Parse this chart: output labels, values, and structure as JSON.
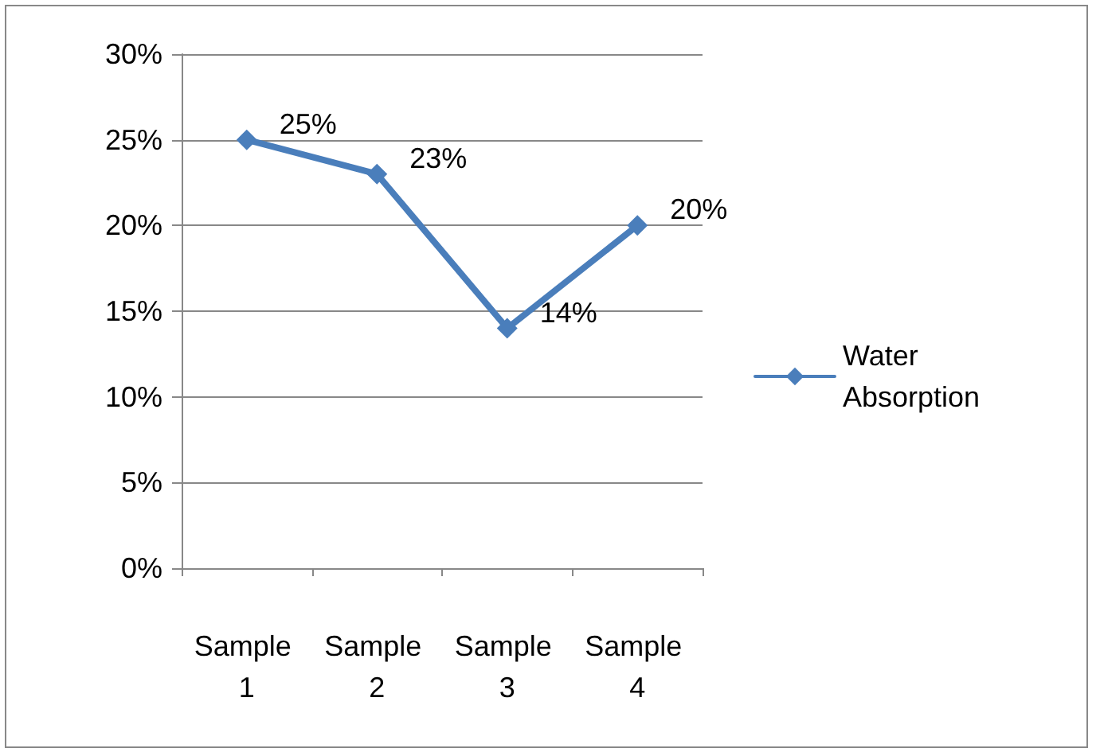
{
  "chart_data": {
    "type": "line",
    "categories": [
      "Sample 1",
      "Sample 2",
      "Sample 3",
      "Sample 4"
    ],
    "series": [
      {
        "name": "Water Absorption",
        "color": "#4a7ebb",
        "values": [
          25,
          23,
          14,
          20
        ],
        "value_labels": [
          "25%",
          "23%",
          "14%",
          "20%"
        ]
      }
    ],
    "ylim": [
      0,
      30
    ],
    "yticks": [
      {
        "value": 0,
        "label": "0%"
      },
      {
        "value": 5,
        "label": "5%"
      },
      {
        "value": 10,
        "label": "10%"
      },
      {
        "value": 15,
        "label": "15%"
      },
      {
        "value": 20,
        "label": "20%"
      },
      {
        "value": 25,
        "label": "25%"
      },
      {
        "value": 30,
        "label": "30%"
      }
    ],
    "grid": "y",
    "legend": "right",
    "marker": "diamond",
    "line_style": "solid"
  }
}
